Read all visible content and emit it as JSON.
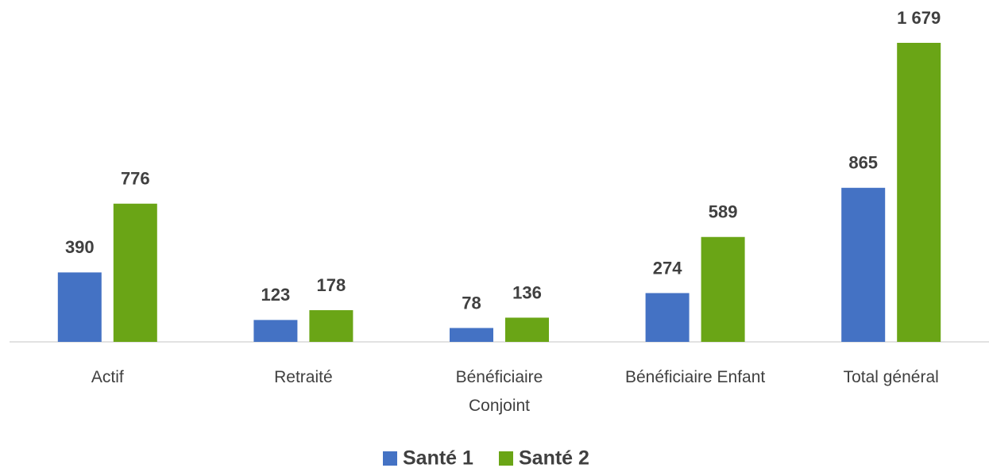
{
  "chart_data": {
    "type": "bar",
    "categories": [
      "Actif",
      "Retraité",
      "Bénéficiaire\nConjoint",
      "Bénéficiaire Enfant",
      "Total général"
    ],
    "series": [
      {
        "name": "Santé 1",
        "color": "#4472c4",
        "values": [
          390,
          123,
          78,
          274,
          865
        ],
        "value_labels": [
          "390",
          "123",
          "78",
          "274",
          "865"
        ]
      },
      {
        "name": "Santé 2",
        "color": "#6aa516",
        "values": [
          776,
          178,
          136,
          589,
          1679
        ],
        "value_labels": [
          "776",
          "178",
          "136",
          "589",
          "1 679"
        ]
      }
    ],
    "legend": "bottom"
  }
}
